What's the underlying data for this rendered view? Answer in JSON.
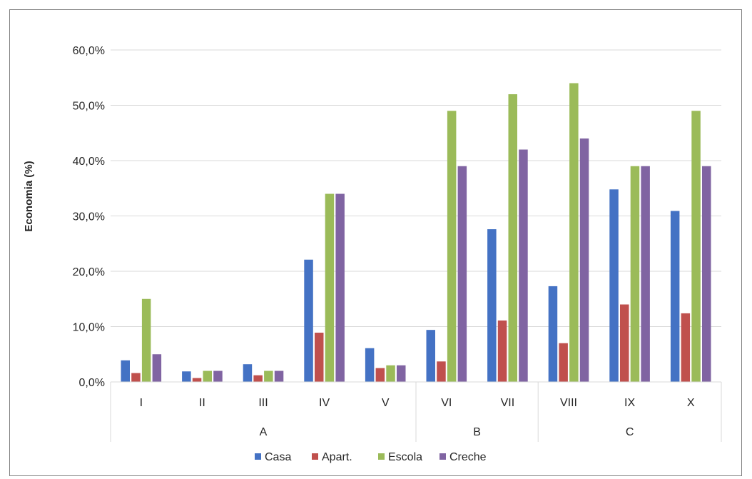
{
  "chart_data": {
    "type": "bar",
    "ylabel": "Economia (%)",
    "ylim": [
      0,
      60
    ],
    "yticks": [
      0,
      10,
      20,
      30,
      40,
      50,
      60
    ],
    "ytick_labels": [
      "0,0%",
      "10,0%",
      "20,0%",
      "30,0%",
      "40,0%",
      "50,0%",
      "60,0%"
    ],
    "grid": true,
    "legend_position": "bottom",
    "categories": [
      "I",
      "II",
      "III",
      "IV",
      "V",
      "VI",
      "VII",
      "VIII",
      "IX",
      "X"
    ],
    "groups": [
      {
        "label": "A",
        "categories": [
          "I",
          "II",
          "III",
          "IV",
          "V"
        ]
      },
      {
        "label": "B",
        "categories": [
          "VI",
          "VII"
        ]
      },
      {
        "label": "C",
        "categories": [
          "VIII",
          "IX",
          "X"
        ]
      }
    ],
    "series": [
      {
        "name": "Casa",
        "color": "#4472C4",
        "values": [
          3.9,
          1.9,
          3.2,
          22.1,
          6.1,
          9.4,
          27.6,
          17.3,
          34.8,
          30.9
        ]
      },
      {
        "name": "Apart.",
        "color": "#C0504D",
        "values": [
          1.6,
          0.7,
          1.2,
          8.9,
          2.5,
          3.7,
          11.1,
          7.0,
          14.0,
          12.4
        ]
      },
      {
        "name": "Escola",
        "color": "#9BBB59",
        "values": [
          15.0,
          2.0,
          2.0,
          34.0,
          3.0,
          49.0,
          52.0,
          54.0,
          39.0,
          49.0
        ]
      },
      {
        "name": "Creche",
        "color": "#8064A2",
        "values": [
          5.0,
          2.0,
          2.0,
          34.0,
          3.0,
          39.0,
          42.0,
          44.0,
          39.0,
          39.0
        ]
      }
    ]
  }
}
